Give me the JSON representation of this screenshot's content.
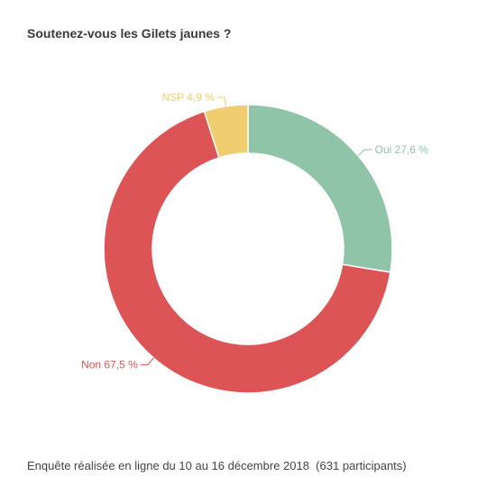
{
  "title": "Soutenez-vous les Gilets jaunes ?",
  "footer": "Enquête réalisée en ligne du 10 au 16 décembre 2018  (631 participants)",
  "chart_data": {
    "type": "pie",
    "title": "Soutenez-vous les Gilets jaunes ?",
    "style": "donut",
    "slices": [
      {
        "label": "Oui",
        "value": 27.6,
        "display": "Oui 27,6 %",
        "color": "#8fc4a9"
      },
      {
        "label": "Non",
        "value": 67.5,
        "display": "Non 67,5 %",
        "color": "#dd5456"
      },
      {
        "label": "NSP",
        "value": 4.9,
        "display": "NSP 4,9 %",
        "color": "#f0cd6e"
      }
    ]
  }
}
